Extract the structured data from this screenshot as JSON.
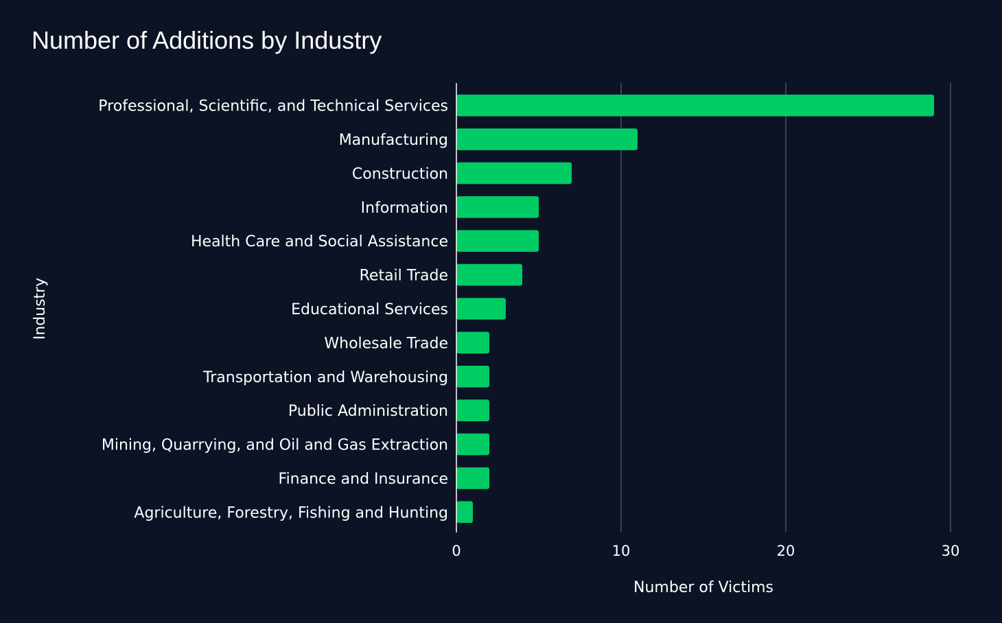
{
  "chart_data": {
    "type": "bar",
    "orientation": "horizontal",
    "title": "Number of Additions by Industry",
    "xlabel": "Number of Victims",
    "ylabel": "Industry",
    "xlim": [
      0,
      30
    ],
    "xticks": [
      0,
      10,
      20,
      30
    ],
    "grid": true,
    "bar_color": "#00cc66",
    "background_color": "#0b1324",
    "gridline_color": "#5a6170",
    "categories": [
      "Professional, Scientific, and Technical Services",
      "Manufacturing",
      "Construction",
      "Information",
      "Health Care and Social Assistance",
      "Retail Trade",
      "Educational Services",
      "Wholesale Trade",
      "Transportation and Warehousing",
      "Public Administration",
      "Mining, Quarrying, and Oil and Gas Extraction",
      "Finance and Insurance",
      "Agriculture, Forestry, Fishing and Hunting"
    ],
    "values": [
      29,
      11,
      7,
      5,
      5,
      4,
      3,
      2,
      2,
      2,
      2,
      2,
      1
    ]
  }
}
